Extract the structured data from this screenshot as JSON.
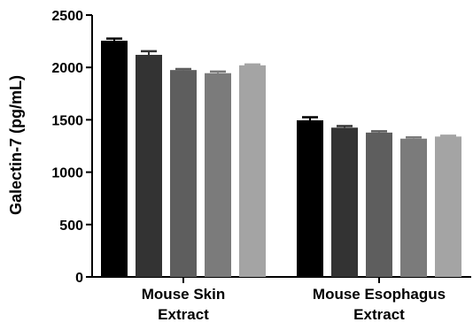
{
  "chart_data": {
    "type": "bar",
    "title": "",
    "ylabel": "Galectin-7 (pg/mL)",
    "xlabel": "",
    "ylim": [
      0,
      2500
    ],
    "yticks": [
      "0",
      "500",
      "1000",
      "1500",
      "2000",
      "2500"
    ],
    "grid": false,
    "categories": [
      {
        "line1": "Mouse Skin",
        "line2": "Extract"
      },
      {
        "line1": "Mouse Esophagus",
        "line2": "Extract"
      }
    ],
    "series": [
      {
        "color": "#000000",
        "values": [
          2255,
          1495
        ],
        "errors": [
          20,
          30
        ]
      },
      {
        "color": "#333333",
        "values": [
          2120,
          1425
        ],
        "errors": [
          35,
          15
        ]
      },
      {
        "color": "#5e5e5e",
        "values": [
          1975,
          1378
        ],
        "errors": [
          10,
          12
        ]
      },
      {
        "color": "#7b7b7b",
        "values": [
          1945,
          1320
        ],
        "errors": [
          15,
          12
        ]
      },
      {
        "color": "#a4a4a4",
        "values": [
          2020,
          1340
        ],
        "errors": [
          8,
          8
        ]
      }
    ]
  }
}
